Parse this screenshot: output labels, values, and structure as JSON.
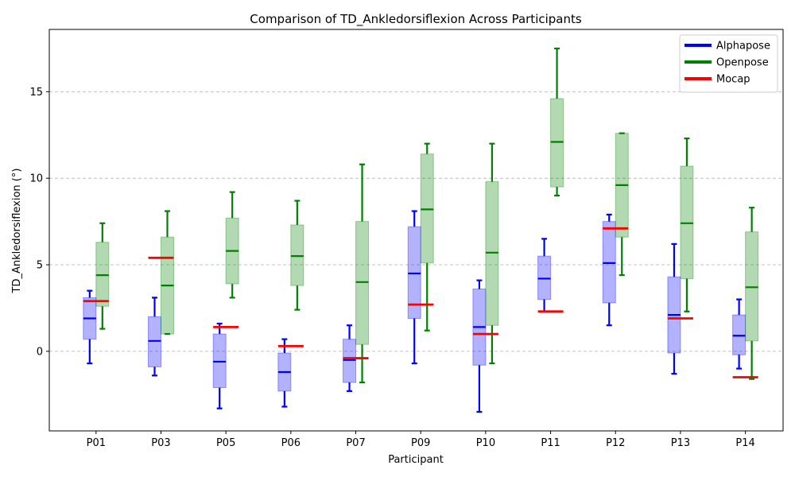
{
  "chart_data": {
    "type": "boxplot",
    "title": "Comparison of TD_Ankledorsiflexion Across Participants",
    "xlabel": "Participant",
    "ylabel": "TD_Ankledorsiflexion (°)",
    "ylim": [
      -4.6,
      18.6
    ],
    "yticks": [
      0,
      5,
      10,
      15
    ],
    "grid": "y-dashed",
    "legend_position": "top-right",
    "categories": [
      "P01",
      "P03",
      "P05",
      "P06",
      "P07",
      "P09",
      "P10",
      "P11",
      "P12",
      "P13",
      "P14"
    ],
    "series": [
      {
        "name": "Alphapose",
        "color": "#0000ff",
        "boxes": [
          {
            "whislo": -0.7,
            "q1": 0.7,
            "median": 1.9,
            "q3": 3.1,
            "whishi": 3.5
          },
          {
            "whislo": -1.4,
            "q1": -0.9,
            "median": 0.6,
            "q3": 2.0,
            "whishi": 3.1
          },
          {
            "whislo": -3.3,
            "q1": -2.1,
            "median": -0.6,
            "q3": 1.0,
            "whishi": 1.6
          },
          {
            "whislo": -3.2,
            "q1": -2.3,
            "median": -1.2,
            "q3": -0.1,
            "whishi": 0.7
          },
          {
            "whislo": -2.3,
            "q1": -1.8,
            "median": -0.5,
            "q3": 0.7,
            "whishi": 1.5
          },
          {
            "whislo": -0.7,
            "q1": 1.9,
            "median": 4.5,
            "q3": 7.2,
            "whishi": 8.1
          },
          {
            "whislo": -3.5,
            "q1": -0.8,
            "median": 1.4,
            "q3": 3.6,
            "whishi": 4.1
          },
          {
            "whislo": 2.3,
            "q1": 3.0,
            "median": 4.2,
            "q3": 5.5,
            "whishi": 6.5
          },
          {
            "whislo": 1.5,
            "q1": 2.8,
            "median": 5.1,
            "q3": 7.5,
            "whishi": 7.9
          },
          {
            "whislo": -1.3,
            "q1": -0.1,
            "median": 2.1,
            "q3": 4.3,
            "whishi": 6.2
          },
          {
            "whislo": -1.0,
            "q1": -0.2,
            "median": 0.9,
            "q3": 2.1,
            "whishi": 3.0
          }
        ]
      },
      {
        "name": "Openpose",
        "color": "#008000",
        "boxes": [
          {
            "whislo": 1.3,
            "q1": 2.6,
            "median": 4.4,
            "q3": 6.3,
            "whishi": 7.4
          },
          {
            "whislo": 1.0,
            "q1": 1.0,
            "median": 3.8,
            "q3": 6.6,
            "whishi": 8.1
          },
          {
            "whislo": 3.1,
            "q1": 3.9,
            "median": 5.8,
            "q3": 7.7,
            "whishi": 9.2
          },
          {
            "whislo": 2.4,
            "q1": 3.8,
            "median": 5.5,
            "q3": 7.3,
            "whishi": 8.7
          },
          {
            "whislo": -1.8,
            "q1": 0.4,
            "median": 4.0,
            "q3": 7.5,
            "whishi": 10.8
          },
          {
            "whislo": 1.2,
            "q1": 5.1,
            "median": 8.2,
            "q3": 11.4,
            "whishi": 12.0
          },
          {
            "whislo": -0.7,
            "q1": 1.5,
            "median": 5.7,
            "q3": 9.8,
            "whishi": 12.0
          },
          {
            "whislo": 9.0,
            "q1": 9.5,
            "median": 12.1,
            "q3": 14.6,
            "whishi": 17.5
          },
          {
            "whislo": 4.4,
            "q1": 6.6,
            "median": 9.6,
            "q3": 12.6,
            "whishi": 12.6
          },
          {
            "whislo": 2.3,
            "q1": 4.2,
            "median": 7.4,
            "q3": 10.7,
            "whishi": 12.3
          },
          {
            "whislo": -1.6,
            "q1": 0.6,
            "median": 3.7,
            "q3": 6.9,
            "whishi": 8.3
          }
        ]
      },
      {
        "name": "Mocap",
        "color": "#ff0000",
        "values": [
          2.9,
          5.4,
          1.4,
          0.3,
          -0.4,
          2.7,
          1.0,
          2.3,
          7.1,
          1.9,
          -1.5
        ]
      }
    ]
  }
}
